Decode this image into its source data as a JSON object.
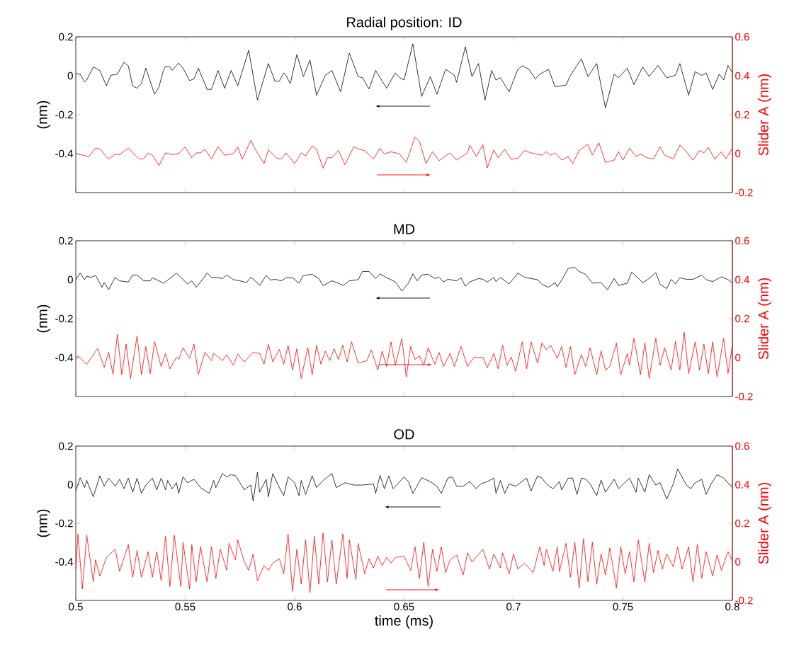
{
  "chart_data": [
    {
      "type": "line",
      "title": "Radial position: ID",
      "ylabel": "(nm)",
      "y2label": "Slider A (nm)",
      "tick_labels": "y",
      "xlim": [
        0.5,
        0.8
      ],
      "xticks": [
        0.5,
        0.55,
        0.6,
        0.65,
        0.7,
        0.75,
        0.8
      ],
      "ylim": [
        -0.6,
        0.2
      ],
      "yticks": [
        -0.4,
        -0.2,
        0,
        0.2
      ],
      "y2lim": [
        -0.2,
        0.6
      ],
      "y2ticks": [
        -0.2,
        0,
        0.2,
        0.4,
        0.6
      ],
      "series": [
        {
          "color": "#000000",
          "x": [
            0.5,
            0.502,
            0.504,
            0.505,
            0.508,
            0.511,
            0.514,
            0.516,
            0.519,
            0.522,
            0.524,
            0.526,
            0.528,
            0.53,
            0.532,
            0.536,
            0.538,
            0.54,
            0.541,
            0.543,
            0.544,
            0.547,
            0.549,
            0.552,
            0.554,
            0.556,
            0.56,
            0.562,
            0.565,
            0.568,
            0.571,
            0.574,
            0.579,
            0.583,
            0.588,
            0.591,
            0.593,
            0.595,
            0.596,
            0.598,
            0.601,
            0.604,
            0.607,
            0.61,
            0.614,
            0.617,
            0.621,
            0.625,
            0.629,
            0.631,
            0.634,
            0.637,
            0.642,
            0.646,
            0.648,
            0.65,
            0.654,
            0.658,
            0.662,
            0.665,
            0.669,
            0.673,
            0.674,
            0.678,
            0.681,
            0.684,
            0.687,
            0.69,
            0.692,
            0.694,
            0.698,
            0.702,
            0.704,
            0.707,
            0.71,
            0.712,
            0.716,
            0.719,
            0.724,
            0.726,
            0.731,
            0.734,
            0.738,
            0.742,
            0.746,
            0.748,
            0.752,
            0.755,
            0.759,
            0.762,
            0.766,
            0.77,
            0.774,
            0.776,
            0.78,
            0.783,
            0.786,
            0.788,
            0.791,
            0.794,
            0.796,
            0.798,
            0.8
          ],
          "values": [
            0.012,
            0.008,
            -0.032,
            -0.022,
            0.045,
            0.027,
            -0.052,
            0.002,
            0.008,
            0.069,
            0.051,
            -0.052,
            -0.064,
            -0.04,
            0.039,
            -0.095,
            -0.058,
            0.027,
            0.048,
            0.045,
            0.027,
            0.065,
            0.039,
            -0.025,
            -0.016,
            0.039,
            -0.07,
            -0.07,
            0.027,
            -0.064,
            0.027,
            -0.052,
            0.131,
            -0.125,
            0.063,
            -0.028,
            -0.028,
            0.015,
            0.002,
            -0.04,
            0.109,
            -0.004,
            0.081,
            -0.1,
            0.002,
            0.027,
            -0.082,
            0.116,
            -0.004,
            -0.01,
            -0.068,
            0.027,
            -0.064,
            0.015,
            -0.01,
            -0.022,
            0.164,
            -0.106,
            -0.004,
            -0.095,
            0.033,
            0.002,
            -0.034,
            0.149,
            -0.004,
            0.063,
            -0.125,
            0.027,
            -0.022,
            -0.01,
            -0.082,
            0.033,
            0.051,
            0.033,
            -0.016,
            0.008,
            0.033,
            -0.056,
            -0.048,
            0.002,
            0.087,
            -0.004,
            0.063,
            -0.165,
            0.008,
            -0.01,
            0.039,
            -0.046,
            0.045,
            -0.004,
            0.053,
            -0.01,
            0.002,
            0.063,
            -0.1,
            0.021,
            0.002,
            0.015,
            -0.07,
            0.008,
            -0.022,
            0.053,
            0.015
          ]
        },
        {
          "color": "#ff0000",
          "axis": "y2",
          "x": [
            0.5,
            0.502,
            0.506,
            0.509,
            0.511,
            0.515,
            0.518,
            0.52,
            0.524,
            0.529,
            0.531,
            0.533,
            0.535,
            0.538,
            0.541,
            0.544,
            0.547,
            0.55,
            0.553,
            0.555,
            0.557,
            0.559,
            0.562,
            0.565,
            0.568,
            0.572,
            0.574,
            0.576,
            0.58,
            0.582,
            0.586,
            0.588,
            0.592,
            0.594,
            0.596,
            0.6,
            0.603,
            0.605,
            0.608,
            0.61,
            0.613,
            0.615,
            0.617,
            0.62,
            0.623,
            0.627,
            0.629,
            0.632,
            0.636,
            0.639,
            0.641,
            0.644,
            0.648,
            0.651,
            0.655,
            0.657,
            0.66,
            0.663,
            0.666,
            0.671,
            0.674,
            0.679,
            0.68,
            0.683,
            0.686,
            0.688,
            0.691,
            0.693,
            0.696,
            0.699,
            0.702,
            0.705,
            0.708,
            0.713,
            0.715,
            0.717,
            0.719,
            0.722,
            0.725,
            0.727,
            0.73,
            0.734,
            0.736,
            0.739,
            0.742,
            0.746,
            0.748,
            0.75,
            0.753,
            0.756,
            0.758,
            0.761,
            0.764,
            0.767,
            0.769,
            0.773,
            0.776,
            0.779,
            0.782,
            0.785,
            0.787,
            0.789,
            0.792,
            0.795,
            0.797,
            0.8
          ],
          "values": [
            0,
            -0.005,
            -0.015,
            0.028,
            0.024,
            -0.029,
            -0.002,
            -0.005,
            0.028,
            -0.027,
            -0.027,
            0.004,
            -0.008,
            -0.061,
            0.004,
            -0.005,
            0,
            0.034,
            -0.021,
            0.004,
            0.004,
            0.022,
            -0.027,
            0.036,
            -0.008,
            0,
            0.034,
            -0.029,
            0.068,
            0.022,
            -0.051,
            0.019,
            -0.024,
            -0.027,
            0.004,
            -0.051,
            0.004,
            -0.012,
            0.04,
            0.022,
            -0.075,
            -0.021,
            -0.021,
            0.016,
            -0.057,
            0.036,
            0.024,
            0.016,
            -0.027,
            0.028,
            -0.002,
            0.01,
            -0.002,
            -0.045,
            0.085,
            0.064,
            -0.051,
            0.01,
            -0.036,
            0.004,
            -0.033,
            0.004,
            0.044,
            -0.015,
            0.046,
            -0.073,
            0.019,
            -0.021,
            0.022,
            -0.029,
            -0.024,
            0.016,
            0.004,
            -0.008,
            0.01,
            -0.008,
            0.004,
            -0.033,
            -0.015,
            -0.051,
            0.016,
            0.048,
            -0.008,
            0.056,
            -0.045,
            -0.033,
            0.01,
            -0.033,
            0.028,
            -0.015,
            -0.002,
            -0.021,
            -0.027,
            0.036,
            -0.008,
            -0.027,
            0.044,
            0.01,
            -0.033,
            0.016,
            0.004,
            0.032,
            -0.029,
            0.01,
            -0.027,
            0.028
          ]
        }
      ]
    },
    {
      "type": "line",
      "title": "MD",
      "ylabel": "(nm)",
      "y2label": "Slider A (nm)",
      "tick_labels": "y",
      "xlim": [
        0.5,
        0.8
      ],
      "xticks": [
        0.5,
        0.55,
        0.6,
        0.65,
        0.7,
        0.75,
        0.8
      ],
      "ylim": [
        -0.6,
        0.2
      ],
      "yticks": [
        -0.4,
        -0.2,
        0,
        0.2
      ],
      "y2lim": [
        -0.2,
        0.6
      ],
      "y2ticks": [
        -0.2,
        0,
        0.2,
        0.4,
        0.6
      ],
      "series": [
        {
          "color": "#000000",
          "x": [
            0.5,
            0.502,
            0.504,
            0.505,
            0.507,
            0.509,
            0.512,
            0.513,
            0.515,
            0.518,
            0.52,
            0.524,
            0.526,
            0.528,
            0.531,
            0.534,
            0.535,
            0.538,
            0.54,
            0.543,
            0.546,
            0.548,
            0.551,
            0.553,
            0.555,
            0.557,
            0.56,
            0.562,
            0.564,
            0.567,
            0.569,
            0.572,
            0.575,
            0.578,
            0.58,
            0.582,
            0.584,
            0.587,
            0.589,
            0.591,
            0.594,
            0.596,
            0.599,
            0.602,
            0.604,
            0.608,
            0.611,
            0.613,
            0.615,
            0.617,
            0.62,
            0.622,
            0.625,
            0.629,
            0.631,
            0.634,
            0.637,
            0.639,
            0.642,
            0.644,
            0.646,
            0.649,
            0.652,
            0.654,
            0.656,
            0.658,
            0.661,
            0.664,
            0.666,
            0.668,
            0.67,
            0.674,
            0.676,
            0.678,
            0.68,
            0.684,
            0.686,
            0.688,
            0.691,
            0.692,
            0.694,
            0.698,
            0.702,
            0.705,
            0.711,
            0.713,
            0.716,
            0.719,
            0.72,
            0.722,
            0.725,
            0.728,
            0.73,
            0.733,
            0.736,
            0.74,
            0.743,
            0.746,
            0.748,
            0.752,
            0.754,
            0.756,
            0.759,
            0.761,
            0.765,
            0.767,
            0.77,
            0.772,
            0.774,
            0.776,
            0.779,
            0.782,
            0.786,
            0.788,
            0.791,
            0.795,
            0.798,
            0.8
          ],
          "values": [
            0,
            0.034,
            0,
            0.018,
            0.012,
            0.022,
            -0.039,
            -0.015,
            -0.051,
            0.012,
            -0.006,
            -0.012,
            0.024,
            0.024,
            -0.006,
            -0.006,
            0.01,
            -0.006,
            -0.018,
            0.006,
            0.034,
            0.012,
            -0.022,
            -0.006,
            -0.039,
            -0.012,
            0.034,
            0.012,
            0.012,
            0.006,
            0.024,
            0,
            -0.006,
            -0.015,
            0.012,
            -0.006,
            -0.03,
            0.022,
            -0.002,
            0.002,
            -0.006,
            0.01,
            0.01,
            -0.018,
            0.022,
            0.027,
            0.006,
            -0.03,
            -0.018,
            -0.006,
            -0.018,
            -0.03,
            -0.006,
            0,
            0.042,
            0.042,
            0.006,
            0.03,
            0.01,
            0,
            -0.012,
            -0.058,
            -0.018,
            0.03,
            -0.006,
            0.024,
            0.028,
            0.006,
            0.012,
            -0.012,
            0.002,
            -0.006,
            0.01,
            -0.034,
            -0.012,
            0.006,
            0.002,
            -0.012,
            0.012,
            -0.01,
            0.012,
            -0.022,
            0.034,
            0.012,
            0,
            -0.024,
            -0.039,
            -0.015,
            -0.036,
            -0.002,
            0.058,
            0.063,
            0.042,
            0.027,
            -0.018,
            -0.015,
            -0.051,
            0.006,
            -0.03,
            -0.018,
            0.039,
            0.018,
            -0.015,
            -0.002,
            0.036,
            -0.024,
            -0.046,
            0.002,
            -0.022,
            0.01,
            0.002,
            0.002,
            0.024,
            0,
            -0.01,
            0.015,
            0,
            -0.018
          ]
        },
        {
          "color": "#ff0000",
          "axis": "y2",
          "x": [
            0.5,
            0.501,
            0.505,
            0.51,
            0.513,
            0.515,
            0.517,
            0.519,
            0.521,
            0.523,
            0.525,
            0.528,
            0.53,
            0.532,
            0.534,
            0.536,
            0.539,
            0.541,
            0.543,
            0.546,
            0.547,
            0.549,
            0.552,
            0.554,
            0.556,
            0.559,
            0.562,
            0.563,
            0.567,
            0.569,
            0.572,
            0.574,
            0.577,
            0.581,
            0.584,
            0.586,
            0.588,
            0.59,
            0.593,
            0.595,
            0.597,
            0.599,
            0.601,
            0.603,
            0.606,
            0.608,
            0.61,
            0.612,
            0.614,
            0.616,
            0.618,
            0.62,
            0.622,
            0.624,
            0.626,
            0.629,
            0.633,
            0.635,
            0.638,
            0.64,
            0.642,
            0.644,
            0.646,
            0.649,
            0.651,
            0.653,
            0.655,
            0.657,
            0.659,
            0.661,
            0.664,
            0.666,
            0.668,
            0.671,
            0.673,
            0.676,
            0.679,
            0.682,
            0.686,
            0.688,
            0.691,
            0.693,
            0.695,
            0.697,
            0.699,
            0.701,
            0.704,
            0.706,
            0.708,
            0.711,
            0.713,
            0.715,
            0.717,
            0.72,
            0.722,
            0.724,
            0.726,
            0.728,
            0.731,
            0.733,
            0.735,
            0.738,
            0.74,
            0.742,
            0.744,
            0.747,
            0.749,
            0.752,
            0.753,
            0.755,
            0.758,
            0.76,
            0.762,
            0.765,
            0.767,
            0.769,
            0.772,
            0.774,
            0.776,
            0.778,
            0.78,
            0.783,
            0.785,
            0.787,
            0.789,
            0.791,
            0.793,
            0.796,
            0.798,
            0.8
          ],
          "values": [
            -0.01,
            0.008,
            -0.034,
            0.047,
            -0.05,
            0.027,
            -0.086,
            0.12,
            -0.088,
            0.069,
            -0.107,
            0.112,
            -0.088,
            0.057,
            -0.082,
            0.081,
            -0.046,
            0.021,
            -0.058,
            0.002,
            -0.01,
            0.051,
            -0.004,
            0.069,
            -0.086,
            0.027,
            -0.016,
            0.021,
            -0.016,
            0.015,
            -0.04,
            0.018,
            -0.022,
            0.027,
            0.021,
            -0.034,
            0.069,
            -0.022,
            0.042,
            -0.034,
            0.063,
            -0.064,
            0.045,
            -0.107,
            0.051,
            -0.088,
            0.063,
            -0.034,
            0.033,
            -0.016,
            0.045,
            -0.01,
            0.063,
            -0.022,
            0.081,
            -0.028,
            -0.016,
            0.039,
            -0.064,
            0.033,
            -0.046,
            0.081,
            -0.04,
            0.099,
            -0.101,
            0.057,
            -0.01,
            0.008,
            -0.04,
            0.051,
            -0.034,
            0.027,
            -0.046,
            0.021,
            -0.046,
            0.057,
            -0.046,
            0.002,
            0.002,
            -0.052,
            0.021,
            -0.058,
            0.063,
            -0.04,
            0.002,
            -0.07,
            0.081,
            -0.058,
            0.081,
            -0.028,
            0.075,
            0.039,
            0.063,
            -0.004,
            0.057,
            -0.052,
            0.057,
            -0.088,
            0.015,
            -0.046,
            0.051,
            -0.088,
            0.035,
            -0.064,
            -0.046,
            0.075,
            -0.088,
            0.021,
            -0.04,
            0.099,
            -0.088,
            0.075,
            -0.107,
            0.099,
            -0.04,
            0.051,
            -0.064,
            0.084,
            -0.064,
            0.13,
            -0.082,
            0.081,
            -0.064,
            0.069,
            -0.082,
            0.081,
            -0.101,
            0.099,
            -0.082,
            0.063
          ]
        }
      ]
    },
    {
      "type": "line",
      "title": "OD",
      "xlabel": "time (ms)",
      "ylabel": "(nm)",
      "y2label": "Slider A (nm)",
      "xlim": [
        0.5,
        0.8
      ],
      "xticks": [
        0.5,
        0.55,
        0.6,
        0.65,
        0.7,
        0.75,
        0.8
      ],
      "ylim": [
        -0.6,
        0.2
      ],
      "yticks": [
        -0.4,
        -0.2,
        0,
        0.2
      ],
      "y2lim": [
        -0.2,
        0.6
      ],
      "y2ticks": [
        -0.2,
        0,
        0.2,
        0.4,
        0.6
      ],
      "series": [
        {
          "color": "#000000",
          "x": [
            0.5,
            0.502,
            0.504,
            0.505,
            0.506,
            0.508,
            0.511,
            0.513,
            0.515,
            0.518,
            0.52,
            0.522,
            0.524,
            0.526,
            0.528,
            0.53,
            0.532,
            0.535,
            0.537,
            0.539,
            0.541,
            0.542,
            0.544,
            0.546,
            0.547,
            0.549,
            0.551,
            0.554,
            0.557,
            0.561,
            0.563,
            0.564,
            0.567,
            0.569,
            0.571,
            0.573,
            0.575,
            0.577,
            0.58,
            0.581,
            0.583,
            0.584,
            0.587,
            0.588,
            0.59,
            0.593,
            0.595,
            0.597,
            0.6,
            0.602,
            0.603,
            0.605,
            0.608,
            0.61,
            0.613,
            0.617,
            0.619,
            0.623,
            0.627,
            0.631,
            0.636,
            0.637,
            0.639,
            0.641,
            0.643,
            0.645,
            0.65,
            0.652,
            0.654,
            0.658,
            0.662,
            0.665,
            0.667,
            0.67,
            0.672,
            0.674,
            0.677,
            0.68,
            0.683,
            0.685,
            0.688,
            0.691,
            0.692,
            0.694,
            0.696,
            0.698,
            0.701,
            0.706,
            0.708,
            0.711,
            0.713,
            0.715,
            0.718,
            0.721,
            0.722,
            0.725,
            0.727,
            0.729,
            0.731,
            0.733,
            0.735,
            0.738,
            0.74,
            0.742,
            0.746,
            0.748,
            0.753,
            0.756,
            0.757,
            0.76,
            0.762,
            0.765,
            0.767,
            0.77,
            0.773,
            0.775,
            0.779,
            0.781,
            0.783,
            0.786,
            0.788,
            0.79,
            0.793,
            0.796,
            0.8
          ],
          "values": [
            -0.033,
            0.036,
            -0.015,
            0.022,
            -0.008,
            -0.063,
            0.046,
            -0.008,
            0.034,
            -0.008,
            0.028,
            -0.021,
            0.034,
            -0.039,
            0.034,
            -0.045,
            -0.002,
            0.034,
            -0.027,
            0.034,
            -0.027,
            0.022,
            -0.021,
            0.01,
            -0.045,
            0.04,
            0.01,
            0.028,
            -0.015,
            -0.045,
            0.022,
            -0.015,
            0.058,
            0.04,
            0.052,
            0.046,
            0.01,
            -0.027,
            -0.002,
            -0.085,
            0.064,
            -0.039,
            0.028,
            -0.063,
            0.058,
            -0.015,
            -0.057,
            0.04,
            0.01,
            -0.057,
            0.022,
            -0.051,
            0.046,
            -0.015,
            0.022,
            0.058,
            -0.015,
            0.01,
            -0.002,
            -0.002,
            0.004,
            -0.045,
            0.048,
            -0.021,
            0.046,
            -0.021,
            0.04,
            0.016,
            -0.045,
            0.036,
            0.016,
            -0.008,
            -0.045,
            0.034,
            0.04,
            -0.008,
            -0.008,
            0.016,
            -0.021,
            0.004,
            0.016,
            0.034,
            -0.045,
            0.022,
            -0.045,
            0.004,
            -0.008,
            0.034,
            -0.033,
            0.046,
            0.034,
            0.004,
            -0.021,
            0.016,
            -0.027,
            0.034,
            0.034,
            -0.051,
            0.034,
            0.028,
            0.004,
            -0.057,
            0.024,
            -0.039,
            0.028,
            -0.021,
            0.034,
            -0.039,
            0.034,
            -0.039,
            0.052,
            -0.002,
            0.01,
            -0.075,
            0.004,
            0.082,
            -0.002,
            -0.021,
            0.01,
            0.028,
            -0.051,
            -0.002,
            0.052,
            0.034,
            -0.015
          ]
        },
        {
          "color": "#ff0000",
          "axis": "y2",
          "x": [
            0.5,
            0.501,
            0.503,
            0.505,
            0.508,
            0.509,
            0.511,
            0.514,
            0.518,
            0.52,
            0.524,
            0.526,
            0.528,
            0.53,
            0.533,
            0.535,
            0.537,
            0.539,
            0.541,
            0.543,
            0.545,
            0.548,
            0.549,
            0.552,
            0.553,
            0.555,
            0.557,
            0.56,
            0.562,
            0.564,
            0.566,
            0.569,
            0.57,
            0.573,
            0.574,
            0.577,
            0.579,
            0.581,
            0.583,
            0.586,
            0.588,
            0.59,
            0.593,
            0.595,
            0.597,
            0.599,
            0.601,
            0.603,
            0.605,
            0.607,
            0.609,
            0.611,
            0.613,
            0.615,
            0.617,
            0.619,
            0.622,
            0.624,
            0.625,
            0.628,
            0.629,
            0.632,
            0.634,
            0.636,
            0.638,
            0.64,
            0.642,
            0.644,
            0.646,
            0.65,
            0.653,
            0.655,
            0.657,
            0.659,
            0.661,
            0.663,
            0.665,
            0.667,
            0.669,
            0.671,
            0.674,
            0.677,
            0.679,
            0.681,
            0.686,
            0.689,
            0.691,
            0.694,
            0.695,
            0.698,
            0.7,
            0.702,
            0.705,
            0.709,
            0.712,
            0.714,
            0.715,
            0.718,
            0.72,
            0.721,
            0.724,
            0.726,
            0.728,
            0.73,
            0.732,
            0.734,
            0.736,
            0.738,
            0.74,
            0.742,
            0.744,
            0.747,
            0.749,
            0.751,
            0.753,
            0.755,
            0.757,
            0.76,
            0.762,
            0.764,
            0.766,
            0.768,
            0.77,
            0.773,
            0.775,
            0.777,
            0.78,
            0.782,
            0.784,
            0.786,
            0.788,
            0.791,
            0.793,
            0.795,
            0.798,
            0.8
          ],
          "values": [
            -0.044,
            0.144,
            -0.141,
            0.138,
            -0.104,
            0.011,
            -0.074,
            0.023,
            0.065,
            -0.05,
            0.09,
            -0.08,
            0.059,
            -0.08,
            0.053,
            -0.08,
            0.053,
            -0.098,
            0.132,
            -0.128,
            0.138,
            -0.128,
            0.102,
            -0.141,
            0.09,
            -0.104,
            0.078,
            -0.104,
            0.078,
            -0.086,
            0.065,
            -0.044,
            0.096,
            0.011,
            0.114,
            -0.001,
            -0.044,
            0.041,
            -0.098,
            -0.019,
            -0.044,
            -0.007,
            0.017,
            -0.062,
            0.144,
            -0.153,
            0.065,
            -0.116,
            0.114,
            -0.159,
            0.132,
            -0.116,
            0.15,
            -0.104,
            0.114,
            -0.116,
            0.144,
            -0.086,
            0.114,
            -0.092,
            0.096,
            -0.062,
            0.017,
            -0.032,
            0.029,
            -0.019,
            0.023,
            -0.007,
            0.023,
            0.029,
            -0.044,
            0.078,
            -0.086,
            0.102,
            -0.128,
            0.065,
            -0.05,
            0.078,
            -0.056,
            0.011,
            0.035,
            -0.068,
            0.047,
            -0.001,
            0.065,
            -0.038,
            0.041,
            -0.032,
            0.047,
            -0.062,
            0.041,
            -0.038,
            -0.007,
            -0.056,
            0.078,
            -0.019,
            0.065,
            -0.05,
            0.078,
            -0.05,
            0.096,
            -0.08,
            0.102,
            -0.135,
            0.12,
            -0.104,
            0.102,
            -0.116,
            0.041,
            -0.068,
            0.072,
            -0.135,
            0.078,
            -0.062,
            0.053,
            -0.104,
            0.114,
            -0.104,
            0.096,
            -0.056,
            0.059,
            -0.038,
            0.041,
            -0.025,
            0.078,
            -0.038,
            0.078,
            -0.104,
            0.09,
            -0.086,
            0.053,
            -0.074,
            0.035,
            -0.044,
            0.053,
            0.005
          ]
        }
      ]
    }
  ]
}
